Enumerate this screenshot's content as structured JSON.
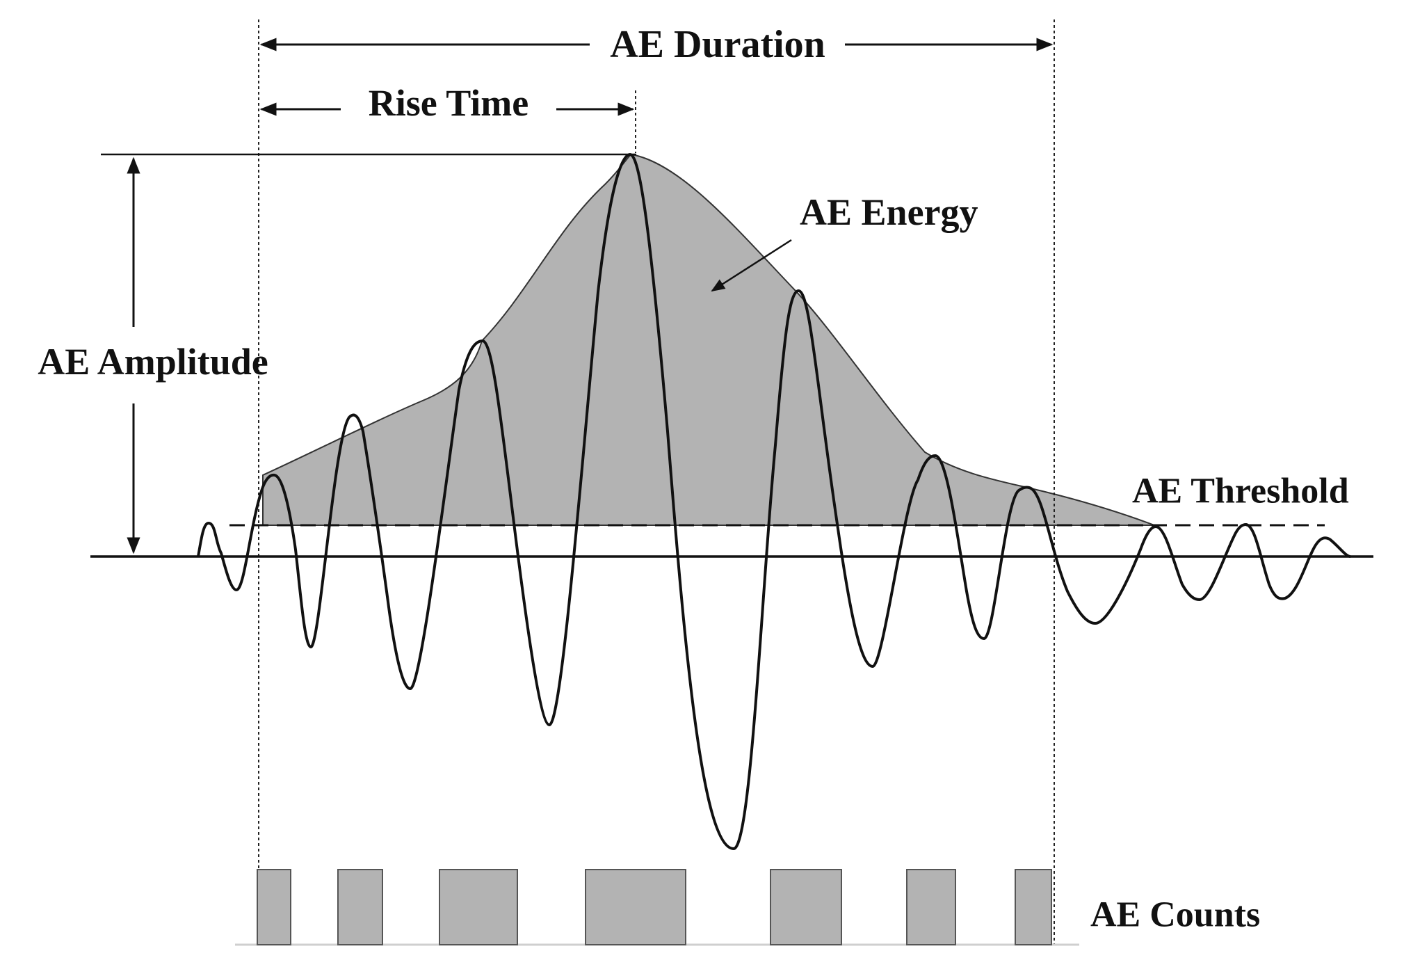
{
  "labels": {
    "duration": "AE Duration",
    "rise_time": "Rise Time",
    "energy": "AE Energy",
    "amplitude": "AE Amplitude",
    "threshold": "AE Threshold",
    "counts": "AE Counts"
  },
  "colors": {
    "ink": "#111111",
    "fill_gray": "#b3b3b3",
    "baseline_gray": "#cfcfcf"
  }
}
